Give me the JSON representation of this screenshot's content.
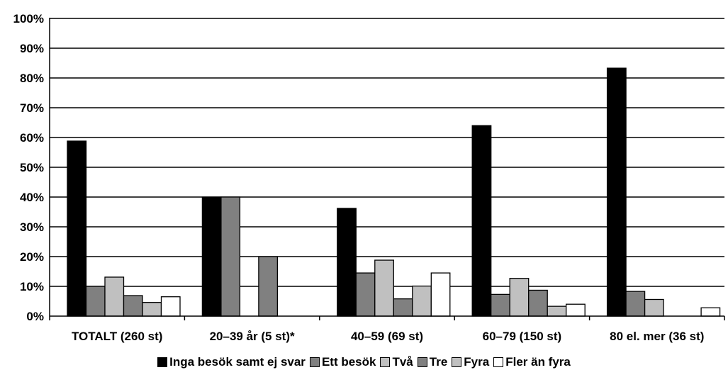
{
  "chart_data": {
    "type": "bar",
    "title": "",
    "xlabel": "",
    "ylabel": "",
    "ylim": [
      0,
      100
    ],
    "y_ticks": [
      "0%",
      "10%",
      "20%",
      "30%",
      "40%",
      "50%",
      "60%",
      "70%",
      "80%",
      "90%",
      "100%"
    ],
    "grid": true,
    "legend_position": "bottom",
    "categories": [
      "TOTALT (260 st)",
      "20–39 år (5 st)*",
      "40–59 (69 st)",
      "60–79 (150 st)",
      "80 el. mer (36 st)"
    ],
    "series": [
      {
        "name": "Inga besök samt ej svar",
        "color": "#000000",
        "values": [
          58.8,
          40,
          36.2,
          64,
          83.3
        ]
      },
      {
        "name": "Ett besök",
        "color": "#808080",
        "values": [
          10,
          40,
          14.5,
          7.3,
          8.3
        ]
      },
      {
        "name": "Två",
        "color": "#c0c0c0",
        "values": [
          13.1,
          0,
          18.8,
          12.7,
          5.6
        ]
      },
      {
        "name": "Tre",
        "color": "#808080",
        "values": [
          6.9,
          20,
          5.8,
          8.7,
          0
        ]
      },
      {
        "name": "Fyra",
        "color": "#c0c0c0",
        "values": [
          4.6,
          0,
          10.1,
          3.3,
          0
        ]
      },
      {
        "name": "Fler än fyra",
        "color": "#ffffff",
        "values": [
          6.5,
          0,
          14.5,
          4,
          2.8
        ]
      }
    ]
  }
}
